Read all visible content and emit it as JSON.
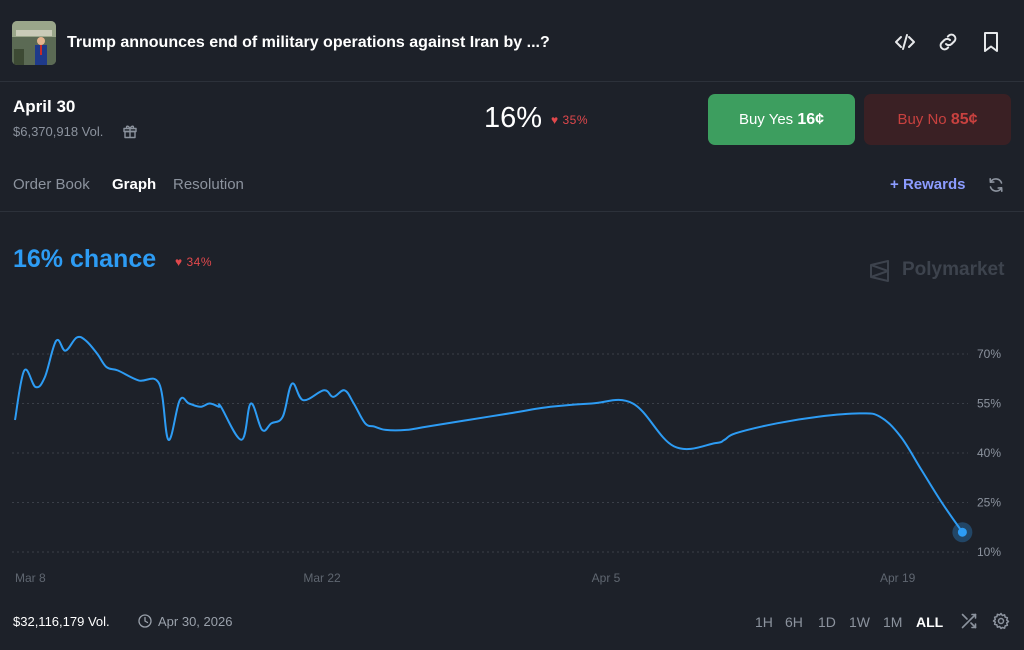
{
  "header": {
    "title": "Trump announces end of military operations against Iran by ...?",
    "icons": [
      "code-icon",
      "link-icon",
      "bookmark-icon"
    ]
  },
  "market": {
    "date_title": "April 30",
    "volume": "$6,370,918 Vol.",
    "probability": "16%",
    "change": "35%",
    "buy_yes_label": "Buy Yes",
    "buy_yes_price": "16¢",
    "buy_no_label": "Buy No",
    "buy_no_price": "85¢"
  },
  "tabs": [
    {
      "label": "Order Book",
      "active": false
    },
    {
      "label": "Graph",
      "active": true
    },
    {
      "label": "Resolution",
      "active": false
    }
  ],
  "rewards_label": "Rewards",
  "chart_header": {
    "chance": "16% chance",
    "change": "34%",
    "watermark": "Polymarket"
  },
  "footer": {
    "volume": "$32,116,179 Vol.",
    "end_date": "Apr 30, 2026",
    "ranges": [
      "1H",
      "6H",
      "1D",
      "1W",
      "1M",
      "ALL"
    ],
    "active_range": "ALL"
  },
  "colors": {
    "line": "#2d9cf4",
    "yes": "#3d9e5f",
    "no": "#c8413f",
    "rewards": "#8c9cff"
  },
  "chart_data": {
    "type": "line",
    "title": "",
    "xlabel": "",
    "ylabel": "",
    "x_ticks": [
      "Mar 8",
      "Mar 22",
      "Apr 5",
      "Apr 19"
    ],
    "y_ticks": [
      "10%",
      "25%",
      "40%",
      "55%",
      "70%"
    ],
    "ylim": [
      10,
      70
    ],
    "grid": true,
    "series": [
      {
        "x": [
          "Mar 8",
          "Mar 8",
          "Mar 9",
          "Mar 9",
          "Mar 10",
          "Mar 10",
          "Mar 11",
          "Mar 11",
          "Mar 12",
          "Mar 12",
          "Mar 13",
          "Mar 14",
          "Mar 15",
          "Mar 15",
          "Mar 16",
          "Mar 16",
          "Mar 17",
          "Mar 17",
          "Mar 17",
          "Mar 18",
          "Mar 19",
          "Mar 19",
          "Mar 20",
          "Mar 20",
          "Mar 21",
          "Mar 21",
          "Mar 22",
          "Mar 23",
          "Mar 23",
          "Mar 24",
          "Mar 24",
          "Mar 25",
          "Mar 25",
          "Mar 26",
          "Mar 27",
          "Mar 28",
          "Mar 30",
          "Apr 1",
          "Apr 3",
          "Apr 5",
          "Apr 7",
          "Apr 9",
          "Apr 11",
          "Apr 11",
          "Apr 12",
          "Apr 14",
          "Apr 16",
          "Apr 18",
          "Apr 19",
          "Apr 20",
          "Apr 21",
          "Apr 22",
          "Apr 23"
        ],
        "y": [
          50,
          65,
          60,
          63,
          74,
          71,
          75,
          74,
          70,
          66,
          65,
          62,
          61,
          44,
          56,
          55,
          54,
          55,
          54,
          54,
          44,
          55,
          47,
          49,
          51,
          61,
          56,
          59,
          57,
          59,
          55,
          49,
          48,
          47,
          47,
          48,
          50,
          52,
          54,
          55,
          55,
          42,
          43,
          44,
          46,
          49,
          51,
          52,
          51,
          45,
          35,
          25,
          16
        ]
      }
    ]
  }
}
